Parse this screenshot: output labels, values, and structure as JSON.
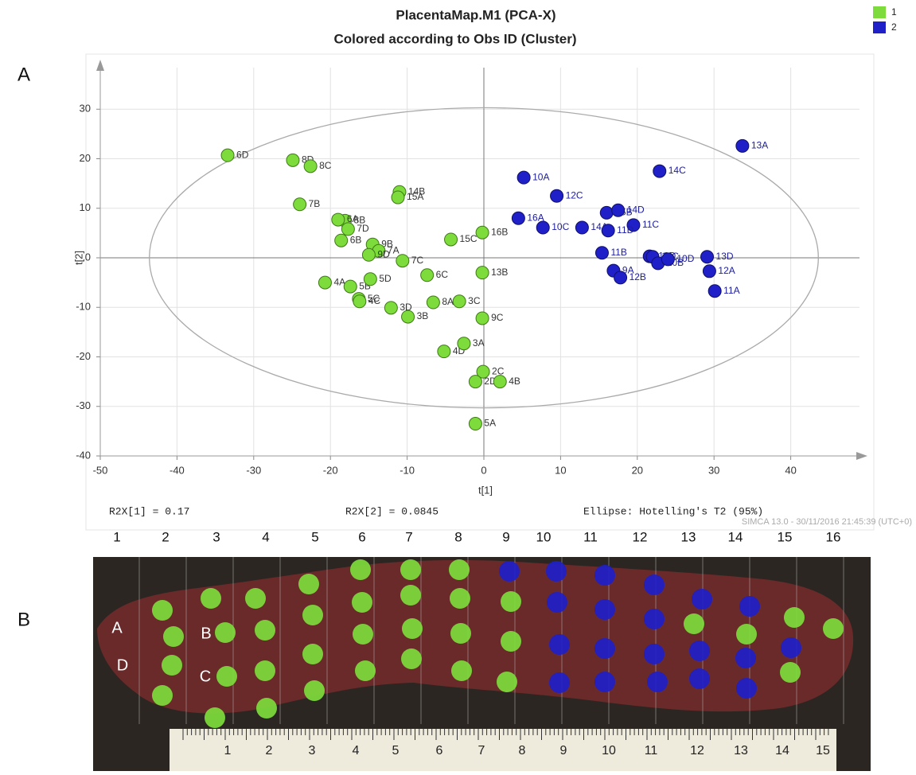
{
  "panel_labels": [
    "A",
    "B"
  ],
  "chart_data": {
    "type": "scatter",
    "title": "PlacentaMap.M1 (PCA-X)",
    "subtitle": "Colored according to Obs ID (Cluster)",
    "x_label": "t[1]",
    "y_label": "t[2]",
    "xlim": [
      -50,
      50
    ],
    "ylim": [
      -40,
      40
    ],
    "xticks": [
      -50,
      -40,
      -30,
      -20,
      -10,
      0,
      10,
      20,
      30,
      40
    ],
    "yticks": [
      -40,
      -30,
      -20,
      -10,
      0,
      10,
      20,
      30
    ],
    "grid": true,
    "legend": "top-right",
    "ellipse_radii": [
      43.6,
      30.3
    ],
    "footer": [
      "R2X[1] = 0.17",
      "R2X[2] = 0.0845",
      "Ellipse: Hotelling's T2 (95%)"
    ],
    "software_note": "SIMCA 13.0 - 30/11/2016 21:45:39 (UTC+0)",
    "series": [
      {
        "name": "1",
        "color": "#7ddc3c",
        "labels": [
          "6D",
          "8D",
          "8C",
          "7B",
          "14B",
          "15A",
          "8B",
          "6A",
          "7D",
          "6B",
          "9B",
          "7A",
          "9D",
          "7C",
          "15C",
          "16B",
          "6C",
          "13B",
          "4A",
          "5B",
          "5D",
          "5C",
          "4C",
          "3D",
          "3B",
          "8A",
          "3C",
          "9C",
          "4D",
          "3A",
          "2C",
          "2D",
          "4B",
          "5A"
        ],
        "x": [
          -33.4,
          -24.9,
          -22.6,
          -24.0,
          -11.0,
          -11.2,
          -18.1,
          -19.0,
          -17.7,
          -18.6,
          -14.5,
          -13.7,
          -15.0,
          -10.6,
          -4.3,
          -0.2,
          -7.4,
          -0.2,
          -20.7,
          -17.4,
          -14.8,
          -16.3,
          -16.2,
          -12.1,
          -9.9,
          -6.6,
          -3.2,
          -0.2,
          -5.2,
          -2.6,
          -0.1,
          -1.1,
          2.1,
          -1.1
        ],
        "values": [
          20.7,
          19.7,
          18.5,
          10.8,
          13.3,
          12.2,
          7.5,
          7.7,
          5.8,
          3.5,
          2.7,
          1.4,
          0.6,
          -0.6,
          3.7,
          5.1,
          -3.5,
          -3.0,
          -5.0,
          -5.8,
          -4.3,
          -8.3,
          -8.8,
          -10.1,
          -11.9,
          -9.0,
          -8.8,
          -12.2,
          -18.9,
          -17.3,
          -23.0,
          -25.0,
          -25.0,
          -33.5
        ]
      },
      {
        "name": "2",
        "color": "#2020c8",
        "labels": [
          "10A",
          "12C",
          "16A",
          "10C",
          "14A",
          "15B",
          "14D",
          "11C",
          "11D",
          "12D",
          "11B",
          "13C",
          "10B",
          "10D",
          "9A",
          "12B",
          "13D",
          "12A",
          "11A",
          "13A",
          "14C"
        ],
        "x": [
          5.2,
          9.5,
          4.5,
          7.7,
          12.8,
          16.0,
          17.5,
          19.5,
          16.2,
          21.6,
          15.4,
          22.0,
          22.7,
          24.0,
          16.9,
          17.8,
          29.1,
          29.4,
          30.1,
          33.7,
          22.9
        ],
        "values": [
          16.2,
          12.5,
          8.0,
          6.1,
          6.1,
          9.1,
          9.6,
          6.6,
          5.5,
          0.3,
          1.0,
          0.2,
          -1.1,
          -0.3,
          -2.6,
          -4.0,
          0.2,
          -2.7,
          -6.7,
          22.6,
          17.5
        ]
      }
    ]
  },
  "photo": {
    "column_numbers": [
      1,
      2,
      3,
      4,
      5,
      6,
      7,
      8,
      9,
      10,
      11,
      12,
      13,
      14,
      15,
      16
    ],
    "row_labels": [
      "A",
      "B",
      "D",
      "C"
    ],
    "ruler_numbers": [
      1,
      2,
      3,
      4,
      5,
      6,
      7,
      8,
      9,
      10,
      11,
      12,
      13,
      14,
      15
    ]
  }
}
